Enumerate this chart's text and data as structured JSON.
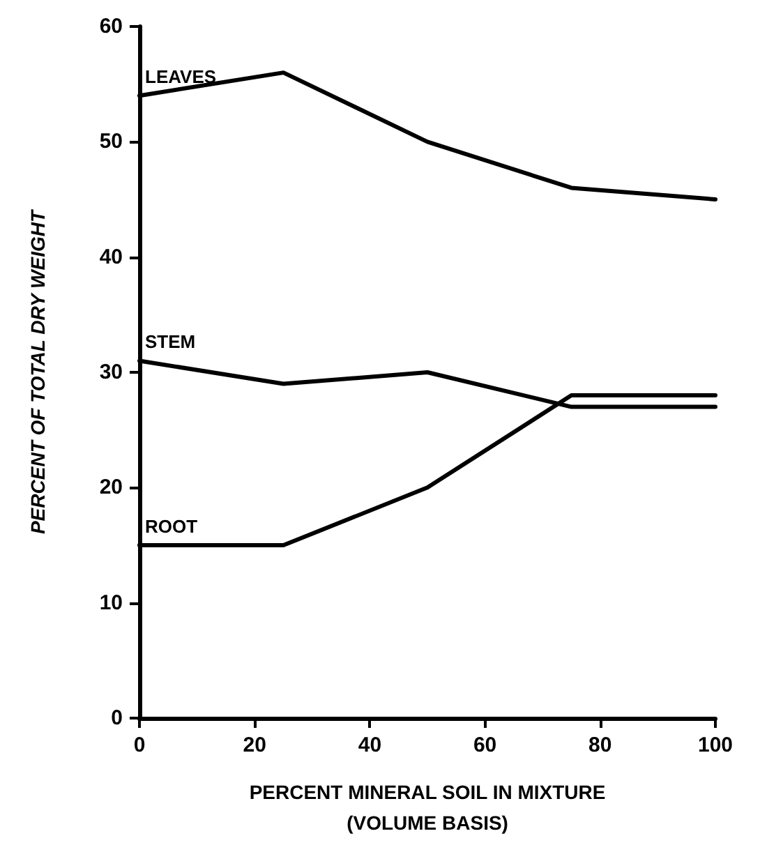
{
  "chart_data": {
    "type": "line",
    "xlabel": "PERCENT MINERAL SOIL IN MIXTURE\n(VOLUME BASIS)",
    "ylabel": "PERCENT OF TOTAL DRY WEIGHT",
    "x": [
      0,
      25,
      50,
      75,
      100
    ],
    "series": [
      {
        "name": "LEAVES",
        "color": "#000000",
        "values": [
          54,
          56,
          50,
          46,
          45
        ]
      },
      {
        "name": "STEM",
        "color": "#000000",
        "values": [
          31,
          29,
          30,
          27,
          27
        ]
      },
      {
        "name": "ROOT",
        "color": "#000000",
        "values": [
          15,
          15,
          20,
          28,
          28
        ]
      }
    ],
    "xlim": [
      0,
      100
    ],
    "xticks": [
      0,
      20,
      40,
      60,
      80,
      100
    ],
    "ylim": [
      0,
      60
    ],
    "yticks": [
      0,
      10,
      20,
      30,
      40,
      50,
      60
    ],
    "grid": false,
    "legend": false,
    "marker": "none",
    "line_style": "solid"
  }
}
